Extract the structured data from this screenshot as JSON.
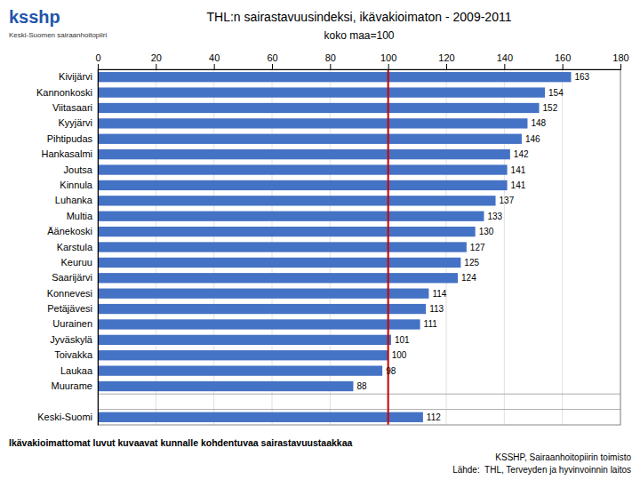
{
  "chart_data": {
    "type": "bar",
    "orientation": "horizontal",
    "title": "THL:n sairastavuusindeksi, ikävakioimaton - 2009-2011",
    "subtitle": "koko maa=100",
    "categories": [
      "Kivijärvi",
      "Kannonkoski",
      "Viitasaari",
      "Kyyjärvi",
      "Pihtipudas",
      "Hankasalmi",
      "Joutsa",
      "Kinnula",
      "Luhanka",
      "Multia",
      "Äänekoski",
      "Karstula",
      "Keuruu",
      "Saarijärvi",
      "Konnevesi",
      "Petäjävesi",
      "Uurainen",
      "Jyväskylä",
      "Toivakka",
      "Laukaa",
      "Muurame",
      null,
      "Keski-Suomi"
    ],
    "values": [
      163,
      154,
      152,
      148,
      146,
      142,
      141,
      141,
      137,
      133,
      130,
      127,
      125,
      124,
      114,
      113,
      111,
      101,
      100,
      98,
      88,
      null,
      112
    ],
    "color": "#4472C4",
    "xlim": [
      0,
      180
    ],
    "xticks": [
      0,
      20,
      40,
      60,
      80,
      100,
      120,
      140,
      160,
      180
    ],
    "grid": true,
    "data_labels": true,
    "reference_line": {
      "value": 100,
      "color": "#CC0000"
    },
    "annotations": [
      "ksshp",
      "Keski-Suomen sairaanhoitopiiri",
      "Ikävakioimattomat luvut kuvaavat kunnalle kohdentuvaa sairastavuustaakkaa",
      "KSSHP, Sairaanhoitopiirin toimisto",
      "Lähde:  THL, Terveyden ja hyvinvoinnin laitos"
    ]
  }
}
